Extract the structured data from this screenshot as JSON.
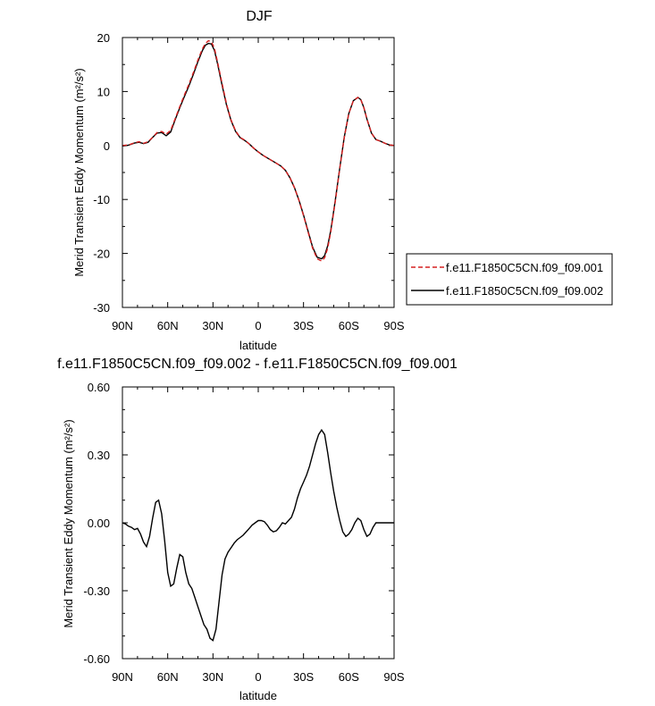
{
  "chart_data": [
    {
      "type": "line",
      "title": "DJF",
      "xlabel": "latitude",
      "ylabel": "Merid Transient Eddy Momentum (m²/s²)",
      "x_unit_note": "latitude: 90 = 90N ... -90 = 90S",
      "xlim": [
        90,
        -90
      ],
      "ylim": [
        -30,
        20
      ],
      "x_ticks": [
        90,
        60,
        30,
        0,
        -30,
        -60,
        -90
      ],
      "x_tick_labels": [
        "90N",
        "60N",
        "30N",
        "0",
        "30S",
        "60S",
        "90S"
      ],
      "y_ticks": [
        20,
        10,
        0,
        -10,
        -20,
        -30
      ],
      "y_tick_labels": [
        "20",
        "10",
        "0",
        "-10",
        "-20",
        "-30"
      ],
      "legend_position": "right",
      "x": [
        90,
        86,
        82,
        79,
        76,
        73,
        70,
        67,
        64,
        61,
        58,
        55,
        52,
        49,
        46,
        43,
        40,
        37,
        35,
        33,
        31,
        29,
        27,
        24,
        21,
        18,
        15,
        12,
        9,
        6,
        3,
        0,
        -3,
        -6,
        -9,
        -12,
        -15,
        -18,
        -21,
        -24,
        -27,
        -30,
        -33,
        -36,
        -39,
        -42,
        -44,
        -46,
        -48,
        -51,
        -54,
        -57,
        -60,
        -63,
        -66,
        -68,
        -70,
        -72,
        -75,
        -78,
        -81,
        -84,
        -87,
        -90
      ],
      "series": [
        {
          "name": "f.e11.F1850C5CN.f09_f09.001",
          "color": "#d62020",
          "dash": "dashed",
          "values": [
            0.0,
            0.1,
            0.5,
            0.7,
            0.4,
            0.7,
            1.5,
            2.4,
            2.6,
            2.1,
            2.8,
            5.0,
            7.2,
            9.3,
            11.3,
            13.5,
            15.8,
            17.9,
            18.9,
            19.4,
            19.2,
            18.0,
            15.5,
            11.5,
            7.7,
            4.7,
            2.7,
            1.5,
            1.0,
            0.3,
            -0.5,
            -1.2,
            -1.8,
            -2.3,
            -2.8,
            -3.3,
            -3.8,
            -4.6,
            -6.0,
            -7.8,
            -10.2,
            -13.0,
            -16.0,
            -19.0,
            -21.0,
            -21.4,
            -20.8,
            -19.0,
            -16.1,
            -10.5,
            -4.3,
            1.5,
            5.9,
            8.3,
            8.9,
            8.5,
            7.0,
            4.9,
            2.3,
            1.1,
            0.8,
            0.4,
            0.1,
            0.0
          ]
        },
        {
          "name": "f.e11.F1850C5CN.f09_f09.002",
          "color": "#000000",
          "dash": "solid",
          "values": [
            -0.1,
            0.05,
            0.45,
            0.6,
            0.35,
            0.6,
            1.5,
            2.3,
            2.4,
            1.8,
            2.5,
            4.8,
            7.0,
            9.0,
            11.0,
            13.2,
            15.5,
            17.6,
            18.6,
            18.9,
            18.8,
            17.6,
            15.2,
            11.2,
            7.5,
            4.6,
            2.6,
            1.45,
            0.95,
            0.3,
            -0.5,
            -1.2,
            -1.8,
            -2.3,
            -2.8,
            -3.3,
            -3.8,
            -4.6,
            -6.0,
            -7.8,
            -10.15,
            -12.9,
            -15.85,
            -18.8,
            -20.7,
            -21.0,
            -20.4,
            -18.6,
            -15.8,
            -10.3,
            -4.2,
            1.6,
            5.9,
            8.3,
            8.9,
            8.5,
            7.0,
            4.9,
            2.3,
            1.1,
            0.8,
            0.4,
            0.1,
            0.0
          ]
        }
      ]
    },
    {
      "type": "line",
      "title": "f.e11.F1850C5CN.f09_f09.002 - f.e11.F1850C5CN.f09_f09.001",
      "xlabel": "latitude",
      "ylabel": "Merid Transient Eddy Momentum (m²/s²)",
      "xlim": [
        90,
        -90
      ],
      "ylim": [
        -0.6,
        0.6
      ],
      "x_ticks": [
        90,
        60,
        30,
        0,
        -30,
        -60,
        -90
      ],
      "x_tick_labels": [
        "90N",
        "60N",
        "30N",
        "0",
        "30S",
        "60S",
        "90S"
      ],
      "y_ticks": [
        0.6,
        0.3,
        0.0,
        -0.3,
        -0.6
      ],
      "y_tick_labels": [
        "0.60",
        "0.30",
        "0.00",
        "-0.30",
        "-0.60"
      ],
      "x": [
        90,
        88,
        86,
        84,
        82,
        80,
        78,
        76,
        74,
        72,
        70,
        68,
        66,
        64,
        62,
        60,
        58,
        56,
        54,
        52,
        50,
        48,
        46,
        44,
        42,
        40,
        38,
        36,
        34,
        32,
        30,
        28,
        26,
        24,
        22,
        20,
        18,
        16,
        14,
        12,
        10,
        8,
        6,
        4,
        2,
        0,
        -2,
        -4,
        -6,
        -8,
        -10,
        -12,
        -14,
        -16,
        -18,
        -20,
        -22,
        -24,
        -26,
        -28,
        -30,
        -32,
        -34,
        -36,
        -38,
        -40,
        -42,
        -44,
        -46,
        -48,
        -50,
        -52,
        -54,
        -56,
        -58,
        -60,
        -62,
        -64,
        -66,
        -68,
        -70,
        -72,
        -74,
        -76,
        -78,
        -80,
        -82,
        -84,
        -86,
        -88,
        -90
      ],
      "series": [
        {
          "name": "",
          "color": "#000000",
          "dash": "solid",
          "values": [
            0.0,
            -0.005,
            -0.015,
            -0.02,
            -0.03,
            -0.025,
            -0.05,
            -0.085,
            -0.105,
            -0.06,
            0.02,
            0.09,
            0.1,
            0.04,
            -0.08,
            -0.22,
            -0.28,
            -0.27,
            -0.2,
            -0.14,
            -0.15,
            -0.22,
            -0.27,
            -0.29,
            -0.33,
            -0.37,
            -0.41,
            -0.45,
            -0.47,
            -0.51,
            -0.52,
            -0.47,
            -0.35,
            -0.23,
            -0.16,
            -0.13,
            -0.11,
            -0.09,
            -0.075,
            -0.065,
            -0.055,
            -0.04,
            -0.025,
            -0.01,
            0.0,
            0.01,
            0.01,
            0.005,
            -0.01,
            -0.03,
            -0.04,
            -0.035,
            -0.02,
            0.0,
            -0.005,
            0.01,
            0.025,
            0.06,
            0.11,
            0.15,
            0.18,
            0.21,
            0.25,
            0.3,
            0.35,
            0.39,
            0.41,
            0.39,
            0.31,
            0.22,
            0.14,
            0.07,
            0.01,
            -0.04,
            -0.06,
            -0.05,
            -0.03,
            0.0,
            0.02,
            0.01,
            -0.03,
            -0.06,
            -0.05,
            -0.02,
            0.0,
            0.0,
            0.0,
            0.0,
            0.0,
            0.0,
            0.0
          ]
        }
      ]
    }
  ]
}
